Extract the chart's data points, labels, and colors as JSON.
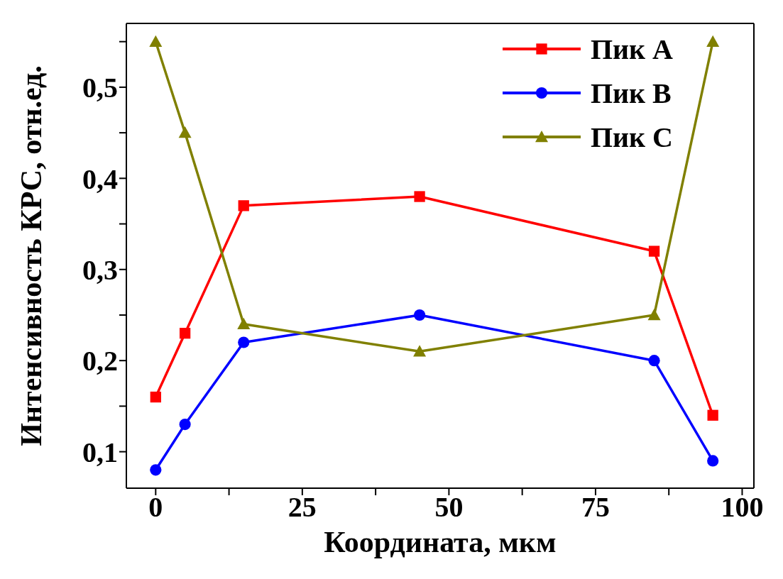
{
  "chart_data": {
    "type": "line",
    "xlabel": "Координата, мкм",
    "ylabel": "Интенсивность КРС, отн.ед.",
    "x": [
      0,
      5,
      15,
      45,
      85,
      95
    ],
    "series": [
      {
        "name": "Пик A",
        "color": "#ff0000",
        "marker": "square",
        "values": [
          0.16,
          0.23,
          0.37,
          0.38,
          0.32,
          0.14
        ]
      },
      {
        "name": "Пик B",
        "color": "#0000ff",
        "marker": "circle",
        "values": [
          0.08,
          0.13,
          0.22,
          0.25,
          0.2,
          0.09
        ]
      },
      {
        "name": "Пик C",
        "color": "#808000",
        "marker": "triangle",
        "values": [
          0.55,
          0.45,
          0.24,
          0.21,
          0.25,
          0.55
        ]
      }
    ],
    "xlim": [
      -5,
      102
    ],
    "xticks": [
      0,
      {
        "value": 12.5,
        "label": null
      },
      25,
      {
        "value": 37.5,
        "label": null
      },
      50,
      {
        "value": 62.5,
        "label": null
      },
      75,
      {
        "value": 87.5,
        "label": null
      },
      100
    ],
    "ylim": [
      0.06,
      0.57
    ],
    "yticks": [
      {
        "value": 0.1,
        "label": "0,1"
      },
      {
        "value": 0.15,
        "label": null
      },
      {
        "value": 0.2,
        "label": "0,2"
      },
      {
        "value": 0.25,
        "label": null
      },
      {
        "value": 0.3,
        "label": "0,3"
      },
      {
        "value": 0.35,
        "label": null
      },
      {
        "value": 0.4,
        "label": "0,4"
      },
      {
        "value": 0.45,
        "label": null
      },
      {
        "value": 0.5,
        "label": "0,5"
      },
      {
        "value": 0.55,
        "label": null
      }
    ],
    "legend": "top right",
    "grid": false,
    "line_style": "solid"
  }
}
